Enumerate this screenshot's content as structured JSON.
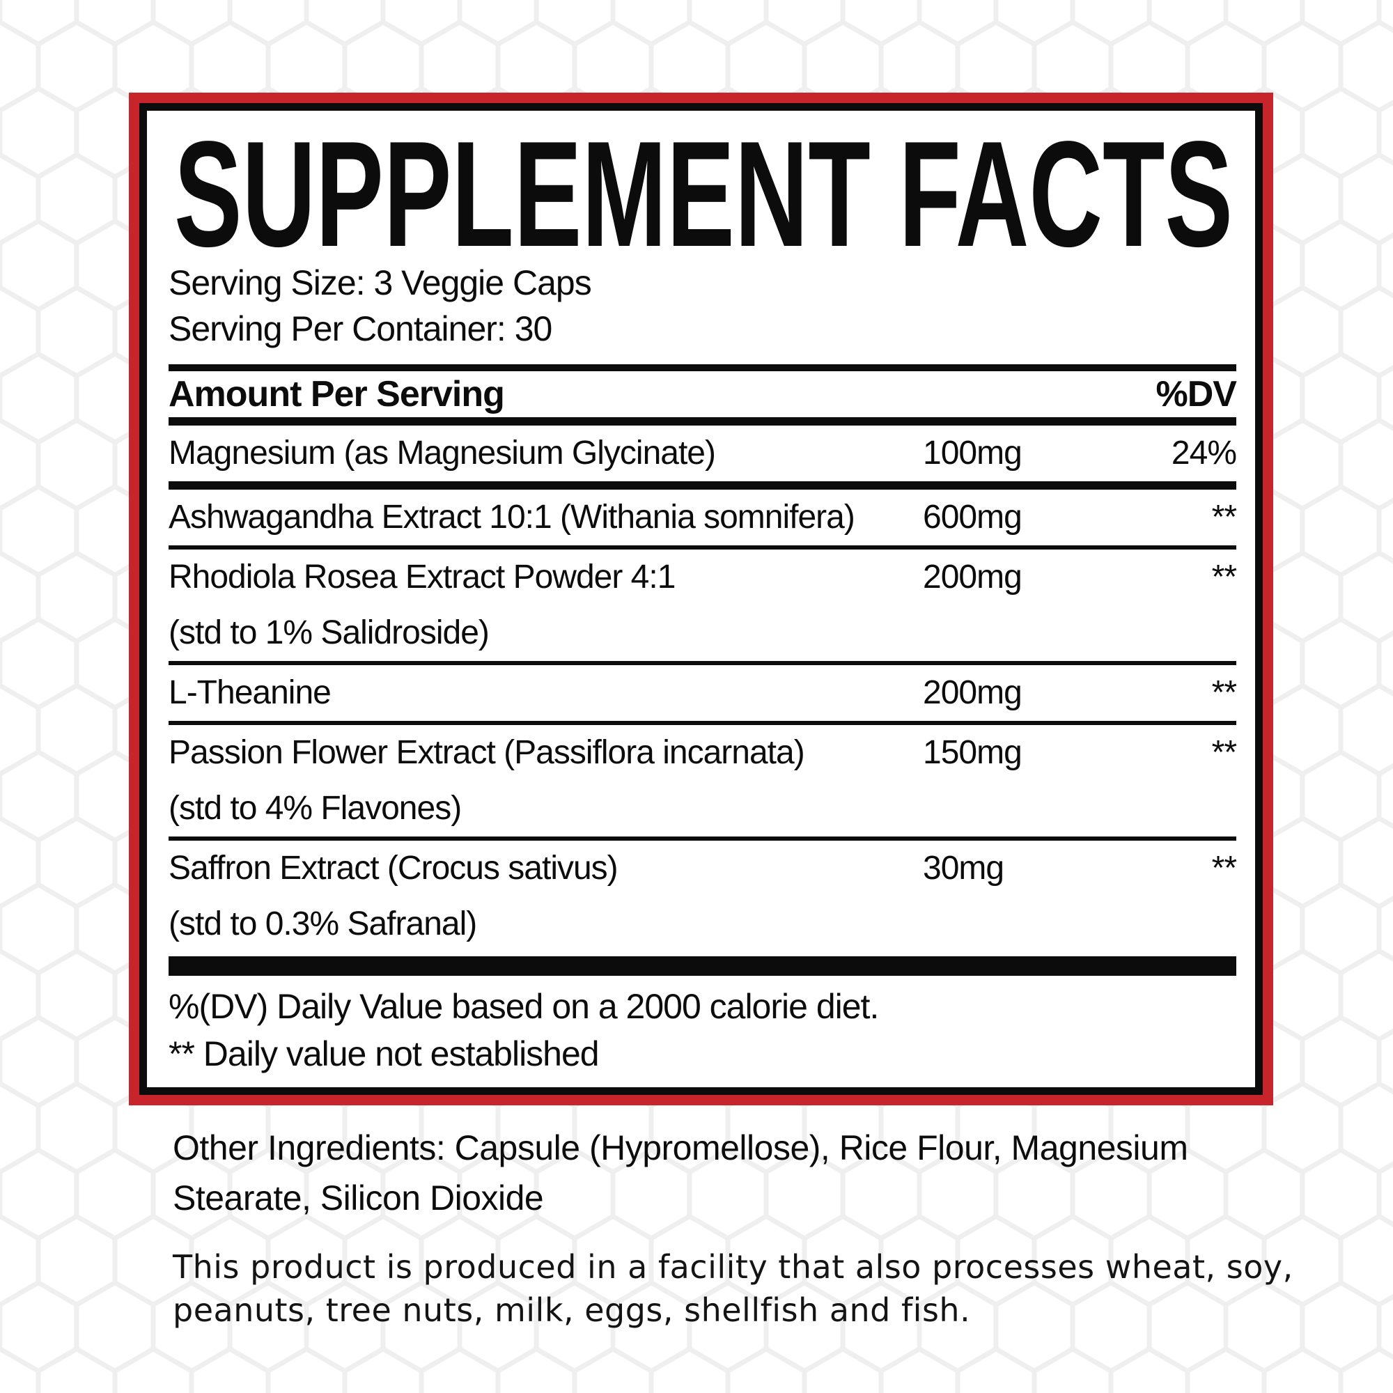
{
  "label": {
    "title": "SUPPLEMENT FACTS",
    "serving_size": "Serving Size: 3 Veggie Caps",
    "servings_per_container": "Serving Per Container: 30",
    "table": {
      "amount_header": "Amount Per Serving",
      "dv_header": "%DV",
      "rows": [
        {
          "name": "Magnesium (as Magnesium Glycinate)",
          "sub": "",
          "amount": "100mg",
          "dv": "24%"
        },
        {
          "name": "Ashwagandha Extract 10:1 (Withania somnifera)",
          "sub": "",
          "amount": "600mg",
          "dv": "**"
        },
        {
          "name": "Rhodiola Rosea Extract Powder 4:1",
          "sub": "(std to 1% Salidroside)",
          "amount": "200mg",
          "dv": "**"
        },
        {
          "name": "L-Theanine",
          "sub": "",
          "amount": "200mg",
          "dv": "**"
        },
        {
          "name": "Passion Flower Extract (Passiflora incarnata)",
          "sub": "(std to 4% Flavones)",
          "amount": "150mg",
          "dv": "**"
        },
        {
          "name": "Saffron Extract (Crocus sativus)",
          "sub": "(std to 0.3% Safranal)",
          "amount": "30mg",
          "dv": "**"
        }
      ]
    },
    "footnotes": [
      "%(DV) Daily Value based on a 2000 calorie diet.",
      "** Daily value not established"
    ]
  },
  "below_panel": {
    "other_ingredients": "Other Ingredients: Capsule (Hypromellose), Rice Flour, Magnesium Stearate, Silicon Dioxide",
    "allergen_statement": "This product is produced in a facility that also processes wheat, soy, peanuts, tree nuts, milk, eggs, shellfish and fish."
  },
  "colors": {
    "accent_red": "#c8242b",
    "ink_black": "#0c0c0c",
    "hex_pattern_gray": "#efefef"
  }
}
